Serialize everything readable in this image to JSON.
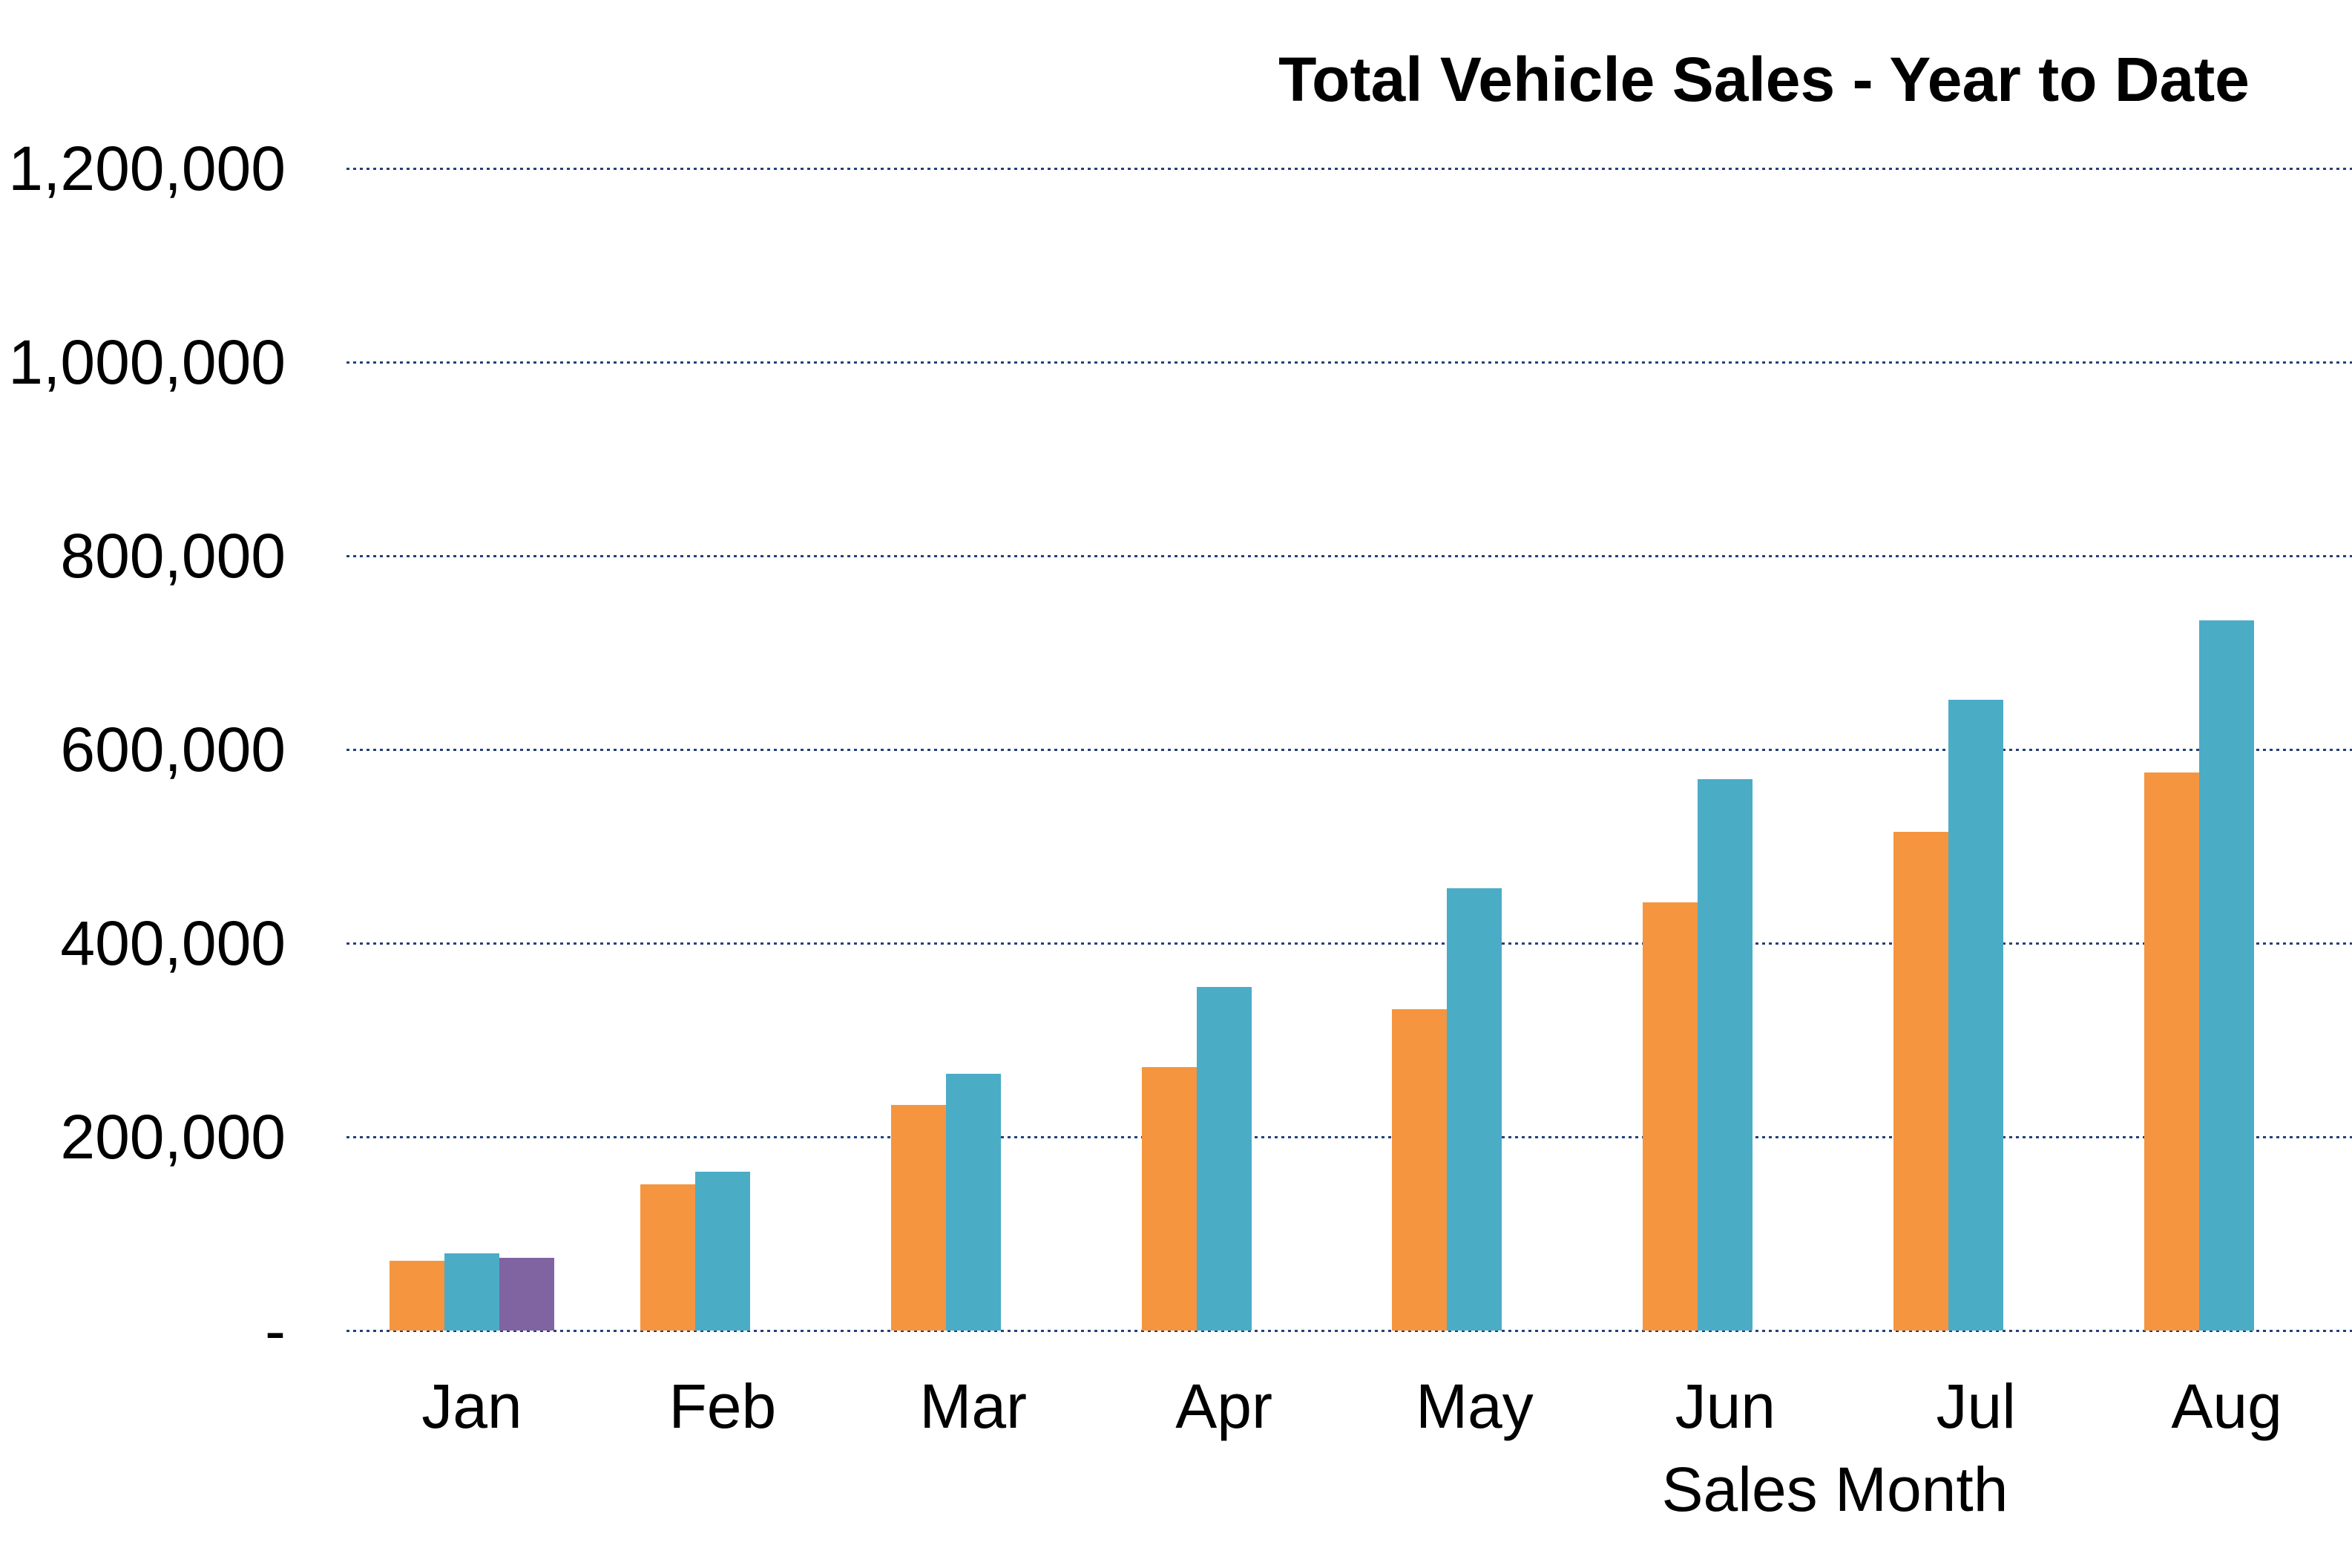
{
  "chart_data": {
    "type": "bar",
    "title": "Total Vehicle Sales - Year to Date",
    "xlabel": "Sales Month",
    "ylabel": "",
    "categories": [
      "Jan",
      "Feb",
      "Mar",
      "Apr",
      "May",
      "Jun",
      "Jul",
      "Aug"
    ],
    "series": [
      {
        "name": "orange-series",
        "color": "#F5953F",
        "values": [
          72000,
          151000,
          233000,
          272000,
          332000,
          442000,
          515000,
          576000
        ]
      },
      {
        "name": "teal-series",
        "color": "#4BACC6",
        "values": [
          80000,
          164000,
          265000,
          355000,
          457000,
          569000,
          651000,
          733000
        ]
      },
      {
        "name": "purple-series",
        "color": "#8064A2",
        "values": [
          75000,
          null,
          null,
          null,
          null,
          null,
          null,
          null
        ]
      }
    ],
    "ylim": [
      0,
      1200000
    ],
    "ytick_values": [
      1200000,
      1000000,
      800000,
      600000,
      400000,
      200000,
      0
    ],
    "ytick_labels": [
      "1,200,000",
      "1,000,000",
      "800,000",
      "600,000",
      "400,000",
      "200,000",
      "-"
    ],
    "grid": "horizontal-dotted",
    "gridline_color": "#24417B",
    "legend": "none",
    "background": "#FFFFFF"
  }
}
